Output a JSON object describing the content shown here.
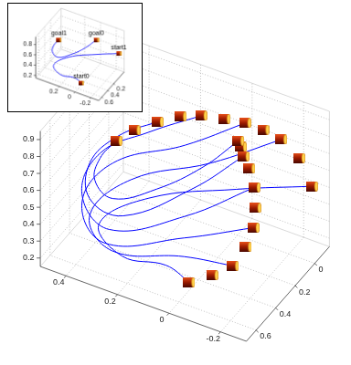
{
  "chart_data": [
    {
      "type": "line3d",
      "xlim": [
        -0.3,
        0.5
      ],
      "ylim": [
        -0.15,
        0.7
      ],
      "zlim": [
        0.15,
        0.95
      ],
      "xticks": [
        -0.2,
        0,
        0.2,
        0.4
      ],
      "yticks": [
        0,
        0.2,
        0.4,
        0.6
      ],
      "zticks": [
        0.2,
        0.3,
        0.4,
        0.5,
        0.6,
        0.7,
        0.8,
        0.9
      ],
      "grid": true,
      "series": [
        {
          "type": "line",
          "color": "#0000ff",
          "line_style": "solid",
          "values": [
            [
              [
                -0.29,
                0,
                0.6
              ],
              [
                -0.11,
                0.3,
                0.68
              ],
              [
                0.23,
                0.3,
                0.44
              ],
              [
                0.31,
                0.6,
                0.44
              ],
              [
                0.22,
                0.6,
                0.3
              ],
              [
                0.05,
                0.6,
                0.34
              ],
              [
                -0.04,
                0.6,
                0.29
              ]
            ],
            [
              [
                -0.17,
                0,
                0.81
              ],
              [
                -0.01,
                0.3,
                0.78
              ],
              [
                0.3,
                0.3,
                0.51
              ],
              [
                0.46,
                0.3,
                0.21
              ],
              [
                0.26,
                0.6,
                0.31
              ],
              [
                -0.02,
                0.6,
                0.43
              ],
              [
                -0.21,
                0.6,
                0.48
              ]
            ],
            [
              [
                -0.03,
                0,
                0.83
              ],
              [
                0.09,
                0.3,
                0.83
              ],
              [
                0.37,
                0.3,
                0.57
              ],
              [
                0.49,
                0.3,
                0.27
              ],
              [
                0.29,
                0.6,
                0.34
              ],
              [
                -0.02,
                0.6,
                0.54
              ],
              [
                -0.29,
                0.6,
                0.75
              ]
            ],
            [
              [
                0.14,
                0,
                0.78
              ],
              [
                0.23,
                0.3,
                0.83
              ],
              [
                0.42,
                0.3,
                0.6
              ],
              [
                0.49,
                0.3,
                0.32
              ],
              [
                0.27,
                0.6,
                0.43
              ],
              [
                0.09,
                0.3,
                0.41
              ],
              [
                -0.18,
                0.3,
                0.73
              ]
            ],
            [
              [
                0.31,
                0,
                0.65
              ],
              [
                0.35,
                0.3,
                0.74
              ],
              [
                0.46,
                0.3,
                0.52
              ],
              [
                0.46,
                0.3,
                0.31
              ],
              [
                0.33,
                0.3,
                0.28
              ],
              [
                0.06,
                0.3,
                0.59
              ],
              [
                -0.08,
                0.15,
                0.76
              ]
            ],
            [
              [
                0.47,
                0,
                0.45
              ],
              [
                0.42,
                0.3,
                0.57
              ],
              [
                0.44,
                0.3,
                0.43
              ],
              [
                0.37,
                0.3,
                0.36
              ],
              [
                0.2,
                0.3,
                0.51
              ],
              [
                0.02,
                0.3,
                0.74
              ],
              [
                -0.06,
                0.15,
                0.84
              ]
            ]
          ]
        },
        {
          "type": "scatter",
          "marker": "cylinder",
          "color": "#9b1b00",
          "values": [
            [
              -0.29,
              0,
              0.6
            ],
            [
              -0.24,
              0,
              0.74
            ],
            [
              -0.17,
              0,
              0.81
            ],
            [
              -0.1,
              0,
              0.83
            ],
            [
              -0.03,
              0,
              0.83
            ],
            [
              0.05,
              0,
              0.81
            ],
            [
              0.14,
              0,
              0.78
            ],
            [
              0.22,
              0,
              0.73
            ],
            [
              0.31,
              0,
              0.65
            ],
            [
              0.4,
              0,
              0.55
            ],
            [
              0.47,
              0,
              0.45
            ]
          ]
        },
        {
          "type": "scatter",
          "marker": "cylinder",
          "color": "#9b1b00",
          "values": [
            [
              -0.04,
              0.6,
              0.29
            ],
            [
              -0.13,
              0.6,
              0.38
            ],
            [
              -0.21,
              0.6,
              0.48
            ],
            [
              -0.26,
              0.6,
              0.62
            ],
            [
              -0.29,
              0.6,
              0.75
            ],
            [
              -0.24,
              0.45,
              0.74
            ],
            [
              -0.18,
              0.3,
              0.73
            ],
            [
              -0.16,
              0.3,
              0.83
            ],
            [
              -0.08,
              0.15,
              0.76
            ],
            [
              -0.07,
              0.15,
              0.81
            ],
            [
              -0.06,
              0.15,
              0.84
            ]
          ]
        }
      ]
    },
    {
      "type": "line3d",
      "xlim": [
        -0.3,
        0.5
      ],
      "ylim": [
        -0.15,
        0.7
      ],
      "zlim": [
        0.15,
        0.95
      ],
      "xticks": [
        -0.2,
        0,
        0.2
      ],
      "yticks": [
        0.2,
        0.4,
        0.6
      ],
      "zticks": [
        0.2,
        0.4,
        0.6,
        0.8
      ],
      "grid": true,
      "series": [
        {
          "type": "line",
          "color": "#0000ff",
          "line_style": "solid",
          "values": [
            [
              [
                -0.29,
                0,
                0.6
              ],
              [
                -0.11,
                0.3,
                0.68
              ],
              [
                0.23,
                0.3,
                0.44
              ],
              [
                0.31,
                0.6,
                0.44
              ],
              [
                0.22,
                0.6,
                0.3
              ],
              [
                0.05,
                0.6,
                0.34
              ],
              [
                -0.04,
                0.6,
                0.29
              ]
            ],
            [
              [
                0.47,
                0,
                0.45
              ],
              [
                0.42,
                0.3,
                0.57
              ],
              [
                0.44,
                0.3,
                0.43
              ],
              [
                0.37,
                0.3,
                0.36
              ],
              [
                0.2,
                0.3,
                0.51
              ],
              [
                0.02,
                0.3,
                0.74
              ],
              [
                -0.06,
                0.15,
                0.84
              ]
            ]
          ]
        },
        {
          "type": "scatter",
          "marker": "cylinder",
          "color": "#9b1b00",
          "values": [
            [
              -0.04,
              0.6,
              0.29
            ],
            [
              -0.06,
              0.15,
              0.84
            ],
            [
              -0.29,
              0,
              0.6
            ],
            [
              0.47,
              0,
              0.45
            ]
          ],
          "point_labels": [
            "start0",
            "goal0",
            "start1",
            "goal1"
          ]
        }
      ]
    }
  ]
}
